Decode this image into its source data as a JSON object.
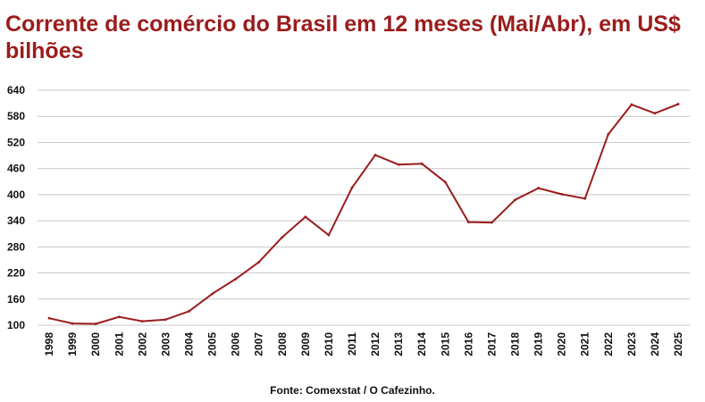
{
  "chart_data": {
    "type": "line",
    "title": "Corrente de comércio do Brasil em 12 meses (Mai/Abr), em US$ bilhões",
    "xlabel": "",
    "ylabel": "",
    "ylim": [
      100,
      640
    ],
    "yticks": [
      100,
      160,
      220,
      280,
      340,
      400,
      460,
      520,
      580,
      640
    ],
    "grid": true,
    "legend": "none",
    "x": [
      "1998",
      "1999",
      "2000",
      "2001",
      "2002",
      "2003",
      "2004",
      "2005",
      "2006",
      "2007",
      "2008",
      "2009",
      "2010",
      "2011",
      "2012",
      "2013",
      "2014",
      "2015",
      "2016",
      "2017",
      "2018",
      "2019",
      "2020",
      "2021",
      "2022",
      "2023",
      "2024",
      "2025"
    ],
    "series": [
      {
        "values": [
          116,
          104,
          103,
          119,
          109,
          113,
          132,
          172,
          206,
          245,
          302,
          349,
          307,
          416,
          491,
          469,
          471,
          429,
          337,
          336,
          388,
          415,
          401,
          391,
          539,
          607,
          587,
          608
        ],
        "color": "#9b1c1c"
      }
    ],
    "source": "Fonte: Comexstat /  O Cafezinho."
  }
}
